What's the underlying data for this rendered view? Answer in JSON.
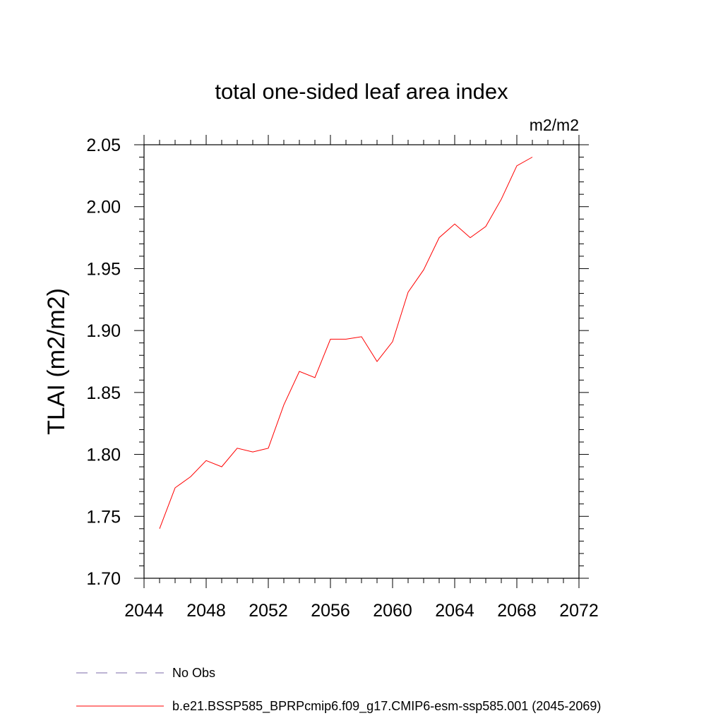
{
  "chart_data": {
    "type": "line",
    "title": "total one-sided leaf area index",
    "units": "m2/m2",
    "xlabel": "",
    "ylabel": "TLAI  (m2/m2)",
    "xlim": [
      2044,
      2072
    ],
    "ylim": [
      1.7,
      2.05
    ],
    "x_ticks": [
      "2044",
      "2048",
      "2052",
      "2056",
      "2060",
      "2064",
      "2068",
      "2072"
    ],
    "y_ticks": [
      "1.70",
      "1.75",
      "1.80",
      "1.85",
      "1.90",
      "1.95",
      "2.00",
      "2.05"
    ],
    "grid": false,
    "legend_position": "bottom",
    "series": [
      {
        "name": "b.e21.BSSP585_BPRPcmip6.f09_g17.CMIP6-esm-ssp585.001 (2045-2069)",
        "color": "#ff0000",
        "dash": "solid",
        "x": [
          2045,
          2046,
          2047,
          2048,
          2049,
          2050,
          2051,
          2052,
          2053,
          2054,
          2055,
          2056,
          2057,
          2058,
          2059,
          2060,
          2061,
          2062,
          2063,
          2064,
          2065,
          2066,
          2067,
          2068,
          2069
        ],
        "values": [
          1.74,
          1.773,
          1.782,
          1.795,
          1.79,
          1.805,
          1.802,
          1.805,
          1.84,
          1.867,
          1.862,
          1.893,
          1.893,
          1.895,
          1.875,
          1.891,
          1.931,
          1.949,
          1.975,
          1.986,
          1.975,
          1.984,
          2.006,
          2.033,
          2.04
        ]
      }
    ],
    "legend": [
      {
        "label": "No Obs",
        "color": "#7b68a8",
        "dash": "dashed"
      },
      {
        "label": "b.e21.BSSP585_BPRPcmip6.f09_g17.CMIP6-esm-ssp585.001 (2045-2069)",
        "color": "#ff0000",
        "dash": "solid"
      }
    ]
  }
}
